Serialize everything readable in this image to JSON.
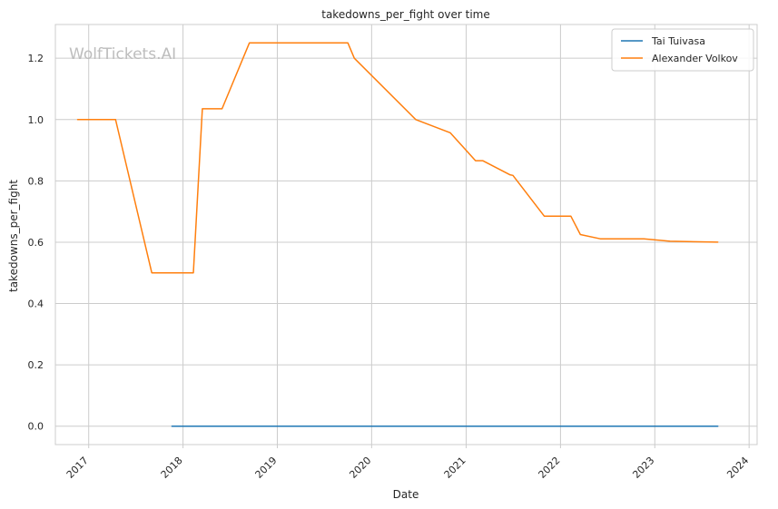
{
  "chart_data": {
    "type": "line",
    "title": "takedowns_per_fight over time",
    "xlabel": "Date",
    "ylabel": "takedowns_per_fight",
    "watermark": "WolfTickets.AI",
    "x_ticks": [
      "2017",
      "2018",
      "2019",
      "2020",
      "2021",
      "2022",
      "2023",
      "2024"
    ],
    "y_ticks": [
      "0.0",
      "0.2",
      "0.4",
      "0.6",
      "0.8",
      "1.0",
      "1.2"
    ],
    "ylim": [
      -0.06,
      1.31
    ],
    "xlim": [
      "2016-08-25",
      "2024-02-01"
    ],
    "grid": true,
    "legend_position": "top-right",
    "series": [
      {
        "name": "Tai Tuivasa",
        "color": "#1f77b4",
        "points": [
          [
            "2017-11-19",
            0.0
          ],
          [
            "2023-09-02",
            0.0
          ]
        ]
      },
      {
        "name": "Alexander Volkov",
        "color": "#ff7f0e",
        "points": [
          [
            "2016-11-19",
            1.0
          ],
          [
            "2017-04-15",
            1.0
          ],
          [
            "2017-09-02",
            0.5
          ],
          [
            "2018-02-10",
            0.5
          ],
          [
            "2018-03-17",
            1.035
          ],
          [
            "2018-06-01",
            1.035
          ],
          [
            "2018-09-15",
            1.25
          ],
          [
            "2019-10-01",
            1.25
          ],
          [
            "2019-10-26",
            1.2
          ],
          [
            "2020-06-20",
            1.0
          ],
          [
            "2020-10-31",
            0.957
          ],
          [
            "2021-02-06",
            0.866
          ],
          [
            "2021-03-06",
            0.866
          ],
          [
            "2021-06-19",
            0.82
          ],
          [
            "2021-07-01",
            0.818
          ],
          [
            "2021-10-30",
            0.685
          ],
          [
            "2022-02-10",
            0.685
          ],
          [
            "2022-03-19",
            0.625
          ],
          [
            "2022-06-04",
            0.611
          ],
          [
            "2022-11-20",
            0.611
          ],
          [
            "2023-03-01",
            0.603
          ],
          [
            "2023-09-02",
            0.6
          ]
        ]
      }
    ]
  }
}
